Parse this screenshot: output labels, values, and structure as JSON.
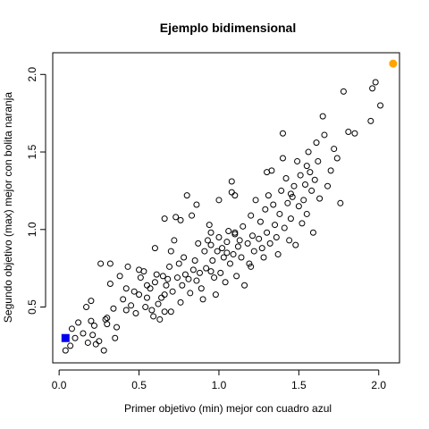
{
  "chart_data": {
    "type": "scatter",
    "title": "Ejemplo bidimensional",
    "xlabel": "Primer objetivo (min) mejor con cuadro azul",
    "ylabel": "Segundo objetivo (max) mejor con bolita naranja",
    "xlim": [
      -0.04,
      2.13
    ],
    "ylim": [
      0.14,
      2.14
    ],
    "xticks": [
      0.0,
      0.5,
      1.0,
      1.5,
      2.0
    ],
    "yticks": [
      0.5,
      1.0,
      1.5,
      2.0
    ],
    "xtick_labels": [
      "0.0",
      "0.5",
      "1.0",
      "1.5",
      "2.0"
    ],
    "ytick_labels": [
      "0.5",
      "1.0",
      "1.5",
      "2.0"
    ],
    "grid": false,
    "colors": {
      "points": "#000000",
      "min_marker": "#0000ee",
      "max_marker": "#ffa500"
    },
    "points": [
      [
        0.04,
        0.22
      ],
      [
        0.07,
        0.25
      ],
      [
        0.08,
        0.36
      ],
      [
        0.1,
        0.3
      ],
      [
        0.12,
        0.4
      ],
      [
        0.15,
        0.33
      ],
      [
        0.17,
        0.5
      ],
      [
        0.18,
        0.27
      ],
      [
        0.2,
        0.54
      ],
      [
        0.2,
        0.41
      ],
      [
        0.21,
        0.32
      ],
      [
        0.22,
        0.38
      ],
      [
        0.23,
        0.26
      ],
      [
        0.25,
        0.28
      ],
      [
        0.26,
        0.78
      ],
      [
        0.28,
        0.22
      ],
      [
        0.29,
        0.42
      ],
      [
        0.3,
        0.39
      ],
      [
        0.32,
        0.65
      ],
      [
        0.32,
        0.78
      ],
      [
        0.34,
        0.49
      ],
      [
        0.35,
        0.3
      ],
      [
        0.36,
        0.37
      ],
      [
        0.38,
        0.7
      ],
      [
        0.4,
        0.55
      ],
      [
        0.42,
        0.62
      ],
      [
        0.43,
        0.76
      ],
      [
        0.45,
        0.51
      ],
      [
        0.47,
        0.6
      ],
      [
        0.48,
        0.46
      ],
      [
        0.5,
        0.58
      ],
      [
        0.51,
        0.69
      ],
      [
        0.53,
        0.73
      ],
      [
        0.54,
        0.5
      ],
      [
        0.55,
        0.64
      ],
      [
        0.57,
        0.62
      ],
      [
        0.58,
        0.48
      ],
      [
        0.59,
        0.44
      ],
      [
        0.6,
        0.88
      ],
      [
        0.61,
        0.71
      ],
      [
        0.62,
        0.52
      ],
      [
        0.63,
        0.42
      ],
      [
        0.64,
        0.56
      ],
      [
        0.65,
        0.7
      ],
      [
        0.66,
        0.58
      ],
      [
        0.66,
        1.07
      ],
      [
        0.67,
        0.64
      ],
      [
        0.68,
        0.68
      ],
      [
        0.69,
        0.76
      ],
      [
        0.7,
        0.47
      ],
      [
        0.71,
        0.6
      ],
      [
        0.72,
        0.93
      ],
      [
        0.73,
        1.08
      ],
      [
        0.74,
        0.69
      ],
      [
        0.75,
        0.78
      ],
      [
        0.76,
        1.06
      ],
      [
        0.77,
        0.64
      ],
      [
        0.78,
        0.82
      ],
      [
        0.79,
        0.71
      ],
      [
        0.8,
        1.22
      ],
      [
        0.81,
        0.68
      ],
      [
        0.82,
        0.59
      ],
      [
        0.83,
        1.09
      ],
      [
        0.84,
        0.74
      ],
      [
        0.85,
        0.8
      ],
      [
        0.86,
        0.67
      ],
      [
        0.87,
        0.91
      ],
      [
        0.88,
        0.72
      ],
      [
        0.89,
        0.62
      ],
      [
        0.9,
        0.55
      ],
      [
        0.91,
        0.86
      ],
      [
        0.92,
        0.75
      ],
      [
        0.93,
        0.93
      ],
      [
        0.94,
        1.03
      ],
      [
        0.95,
        0.98
      ],
      [
        0.96,
        0.8
      ],
      [
        0.97,
        0.69
      ],
      [
        0.98,
        0.58
      ],
      [
        0.99,
        0.86
      ],
      [
        1.0,
        0.95
      ],
      [
        1.0,
        1.19
      ],
      [
        1.01,
        0.72
      ],
      [
        1.02,
        0.88
      ],
      [
        1.03,
        0.82
      ],
      [
        1.04,
        0.66
      ],
      [
        1.05,
        0.92
      ],
      [
        1.06,
        0.99
      ],
      [
        1.07,
        0.78
      ],
      [
        1.08,
        1.24
      ],
      [
        1.08,
        1.31
      ],
      [
        1.09,
        0.84
      ],
      [
        1.1,
        0.97
      ],
      [
        1.1,
        1.22
      ],
      [
        1.11,
        0.7
      ],
      [
        1.12,
        0.89
      ],
      [
        1.13,
        0.93
      ],
      [
        1.14,
        0.82
      ],
      [
        1.15,
        1.02
      ],
      [
        1.16,
        0.64
      ],
      [
        1.18,
        0.91
      ],
      [
        1.19,
        0.78
      ],
      [
        1.2,
        1.09
      ],
      [
        1.21,
        0.96
      ],
      [
        1.22,
        0.86
      ],
      [
        1.23,
        1.19
      ],
      [
        1.25,
        0.94
      ],
      [
        1.26,
        1.05
      ],
      [
        1.27,
        0.88
      ],
      [
        1.28,
        0.82
      ],
      [
        1.29,
        1.13
      ],
      [
        1.3,
        0.98
      ],
      [
        1.31,
        1.22
      ],
      [
        1.32,
        0.91
      ],
      [
        1.33,
        1.38
      ],
      [
        1.34,
        1.16
      ],
      [
        1.35,
        1.03
      ],
      [
        1.36,
        0.95
      ],
      [
        1.37,
        0.84
      ],
      [
        1.38,
        1.1
      ],
      [
        1.39,
        1.25
      ],
      [
        1.4,
        1.46
      ],
      [
        1.41,
        1.01
      ],
      [
        1.42,
        1.33
      ],
      [
        1.43,
        1.17
      ],
      [
        1.44,
        0.93
      ],
      [
        1.45,
        1.07
      ],
      [
        1.46,
        1.21
      ],
      [
        1.47,
        1.28
      ],
      [
        1.48,
        0.9
      ],
      [
        1.49,
        1.44
      ],
      [
        1.5,
        1.15
      ],
      [
        1.51,
        1.35
      ],
      [
        1.52,
        1.04
      ],
      [
        1.53,
        1.19
      ],
      [
        1.54,
        1.29
      ],
      [
        1.55,
        1.1
      ],
      [
        1.56,
        1.5
      ],
      [
        1.57,
        1.37
      ],
      [
        1.58,
        1.25
      ],
      [
        1.59,
        0.98
      ],
      [
        1.6,
        1.32
      ],
      [
        1.61,
        1.56
      ],
      [
        1.62,
        1.44
      ],
      [
        1.63,
        1.2
      ],
      [
        1.65,
        1.73
      ],
      [
        1.66,
        1.61
      ],
      [
        1.68,
        1.28
      ],
      [
        1.7,
        1.38
      ],
      [
        1.72,
        1.52
      ],
      [
        1.74,
        1.46
      ],
      [
        1.76,
        1.17
      ],
      [
        1.78,
        1.89
      ],
      [
        1.81,
        1.63
      ],
      [
        1.85,
        1.62
      ],
      [
        1.95,
        1.7
      ],
      [
        1.96,
        1.91
      ],
      [
        1.98,
        1.95
      ],
      [
        2.01,
        1.8
      ],
      [
        1.3,
        1.37
      ],
      [
        1.4,
        1.62
      ],
      [
        1.1,
        0.98
      ],
      [
        0.86,
        1.16
      ],
      [
        0.5,
        0.74
      ],
      [
        0.6,
        0.66
      ],
      [
        0.95,
        0.9
      ],
      [
        0.7,
        0.86
      ],
      [
        0.3,
        0.43
      ],
      [
        0.55,
        0.56
      ],
      [
        1.2,
        0.76
      ],
      [
        0.42,
        0.48
      ],
      [
        1.05,
        0.85
      ],
      [
        0.76,
        0.53
      ],
      [
        0.66,
        0.47
      ],
      [
        1.45,
        1.23
      ],
      [
        1.55,
        1.41
      ],
      [
        0.95,
        0.73
      ]
    ],
    "min_point": [
      0.04,
      0.3
    ],
    "max_point": [
      2.09,
      2.07
    ]
  }
}
